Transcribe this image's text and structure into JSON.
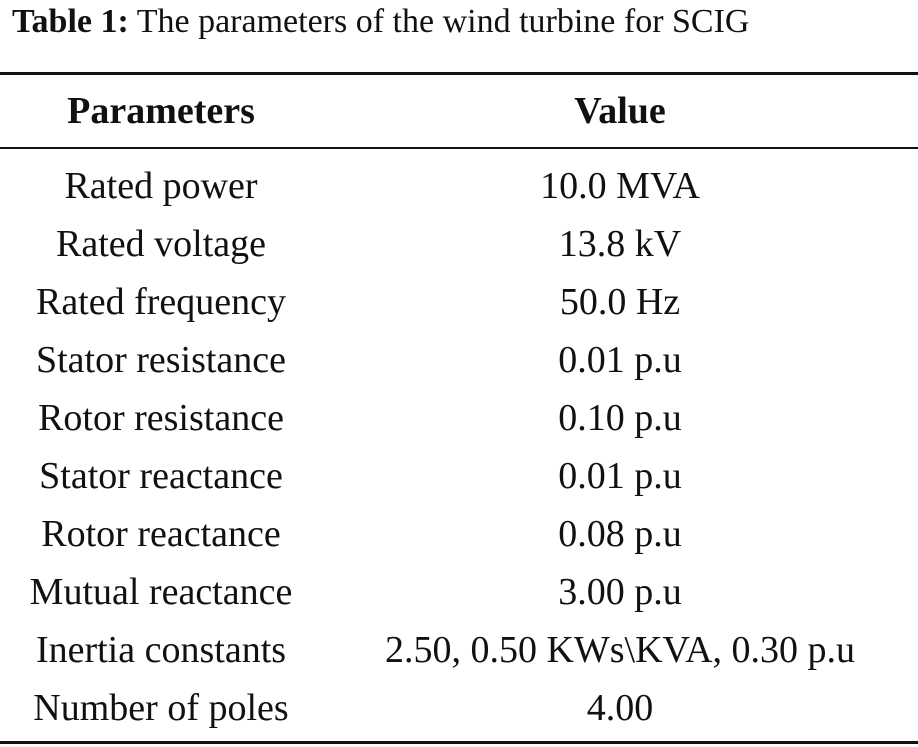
{
  "caption": {
    "label": "Table 1:",
    "text": "The parameters of the wind turbine for SCIG"
  },
  "headers": {
    "parameter": "Parameters",
    "value": "Value"
  },
  "rows": [
    {
      "parameter": "Rated power",
      "value": "10.0 MVA"
    },
    {
      "parameter": "Rated voltage",
      "value": "13.8 kV"
    },
    {
      "parameter": "Rated frequency",
      "value": "50.0 Hz"
    },
    {
      "parameter": "Stator resistance",
      "value": "0.01 p.u"
    },
    {
      "parameter": "Rotor resistance",
      "value": "0.10 p.u"
    },
    {
      "parameter": "Stator reactance",
      "value": "0.01 p.u"
    },
    {
      "parameter": "Rotor reactance",
      "value": "0.08 p.u"
    },
    {
      "parameter": "Mutual reactance",
      "value": "3.00 p.u"
    },
    {
      "parameter": "Inertia constants",
      "value": "2.50, 0.50 KWs\\KVA, 0.30 p.u"
    },
    {
      "parameter": "Number of poles",
      "value": "4.00"
    }
  ]
}
